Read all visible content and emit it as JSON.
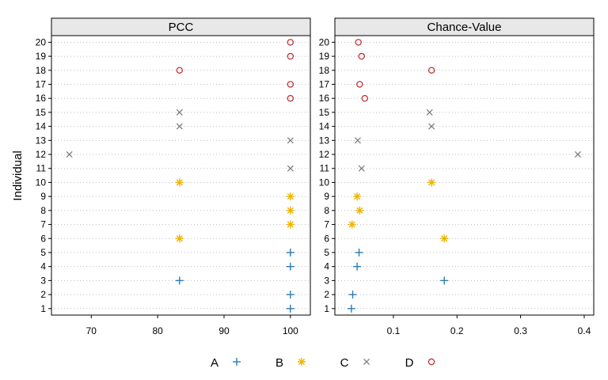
{
  "chart_data": {
    "type": "scatter",
    "ylabel": "Individual",
    "y_categories": [
      1,
      2,
      3,
      4,
      5,
      6,
      7,
      8,
      9,
      10,
      11,
      12,
      13,
      14,
      15,
      16,
      17,
      18,
      19,
      20
    ],
    "legend": {
      "position": "bottom",
      "entries": [
        {
          "name": "A",
          "marker": "plus",
          "color": "#2c7bb6"
        },
        {
          "name": "B",
          "marker": "asterisk",
          "color": "#f0b400"
        },
        {
          "name": "C",
          "marker": "x",
          "color": "#7a7a7a"
        },
        {
          "name": "D",
          "marker": "circle",
          "color": "#c0282d"
        }
      ]
    },
    "groups": {
      "A": [
        1,
        2,
        3,
        4,
        5
      ],
      "B": [
        6,
        7,
        8,
        9,
        10
      ],
      "C": [
        11,
        12,
        13,
        14,
        15
      ],
      "D": [
        16,
        17,
        18,
        19,
        20
      ]
    },
    "panels": [
      {
        "title": "PCC",
        "xlim": [
          64,
          103
        ],
        "xticks": [
          70,
          80,
          90,
          100
        ],
        "tick_labels": [
          "70",
          "80",
          "90",
          "100"
        ],
        "values": [
          100,
          100,
          83.3,
          100,
          100,
          83.3,
          100,
          100,
          100,
          83.3,
          100,
          66.7,
          100,
          83.3,
          83.3,
          100,
          100,
          83.3,
          100,
          100
        ]
      },
      {
        "title": "Chance-Value",
        "xlim": [
          0.008,
          0.415
        ],
        "xticks": [
          0.1,
          0.2,
          0.3,
          0.4
        ],
        "tick_labels": [
          "0.1",
          "0.2",
          "0.3",
          "0.4"
        ],
        "values": [
          0.034,
          0.036,
          0.18,
          0.043,
          0.046,
          0.18,
          0.035,
          0.047,
          0.043,
          0.16,
          0.05,
          0.39,
          0.044,
          0.16,
          0.157,
          0.055,
          0.047,
          0.16,
          0.05,
          0.045
        ]
      }
    ]
  }
}
